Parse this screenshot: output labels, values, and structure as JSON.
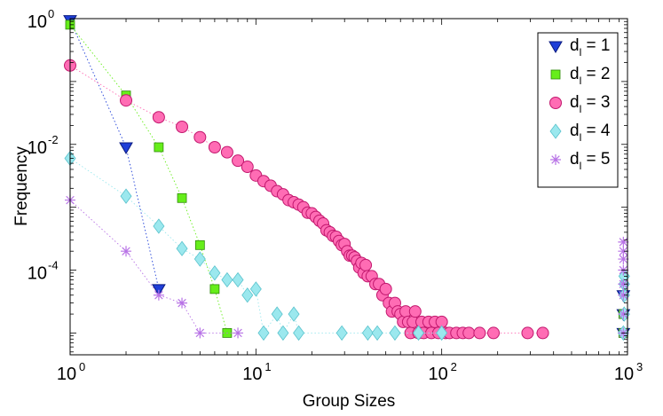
{
  "chart_data": {
    "type": "scatter",
    "title": "",
    "xlabel": "Group Sizes",
    "ylabel": "Frequency",
    "xscale": "log",
    "yscale": "log",
    "xlim": [
      1,
      1000
    ],
    "ylim": [
      4.5e-06,
      1
    ],
    "legend_position": "top-right",
    "x_ticks": [
      {
        "value": 1,
        "base": "10",
        "exp": "0"
      },
      {
        "value": 10,
        "base": "10",
        "exp": "1"
      },
      {
        "value": 100,
        "base": "10",
        "exp": "2"
      },
      {
        "value": 1000,
        "base": "10",
        "exp": "3"
      }
    ],
    "y_ticks": [
      {
        "value": 1,
        "base": "10",
        "exp": "0"
      },
      {
        "value": 0.01,
        "base": "10",
        "exp": "-2"
      },
      {
        "value": 0.0001,
        "base": "10",
        "exp": "-4"
      }
    ],
    "series": [
      {
        "name": "d_l = 1",
        "label_main": "d",
        "label_sub": "l",
        "label_rest": " = 1",
        "marker": "triangle-down",
        "color": "#1f3fd8",
        "stroke": "#0a1a80",
        "points": [
          [
            1,
            0.95
          ],
          [
            2,
            0.009
          ],
          [
            3,
            5e-05
          ],
          [
            950,
            1e-05
          ],
          [
            950,
            2e-05
          ],
          [
            950,
            4e-05
          ]
        ]
      },
      {
        "name": "d_l = 2",
        "label_main": "d",
        "label_sub": "l",
        "label_rest": " = 2",
        "marker": "square",
        "color": "#66ee1a",
        "stroke": "#2f8a0a",
        "points": [
          [
            1,
            0.8
          ],
          [
            2,
            0.06
          ],
          [
            3,
            0.009
          ],
          [
            4,
            0.0014
          ],
          [
            5,
            0.00025
          ],
          [
            6,
            5e-05
          ],
          [
            7,
            1e-05
          ],
          [
            950,
            1e-05
          ],
          [
            950,
            2e-05
          ]
        ]
      },
      {
        "name": "d_l = 3",
        "label_main": "d",
        "label_sub": "l",
        "label_rest": " = 3",
        "marker": "circle",
        "color": "#ff6cb4",
        "stroke": "#c2186e",
        "points": [
          [
            1,
            0.18
          ],
          [
            2,
            0.05
          ],
          [
            3,
            0.027
          ],
          [
            4,
            0.019
          ],
          [
            5,
            0.013
          ],
          [
            6,
            0.009
          ],
          [
            7,
            0.0075
          ],
          [
            8,
            0.0055
          ],
          [
            9,
            0.0044
          ],
          [
            10,
            0.0032
          ],
          [
            11,
            0.0026
          ],
          [
            12,
            0.0022
          ],
          [
            13,
            0.0018
          ],
          [
            14,
            0.0016
          ],
          [
            15,
            0.0013
          ],
          [
            16,
            0.0012
          ],
          [
            17,
            0.0011
          ],
          [
            18,
            0.001
          ],
          [
            19,
            0.00082
          ],
          [
            20,
            0.0008
          ],
          [
            21,
            0.0007
          ],
          [
            22,
            0.00061
          ],
          [
            23,
            0.00055
          ],
          [
            24,
            0.00043
          ],
          [
            25,
            0.0004
          ],
          [
            26,
            0.00035
          ],
          [
            27,
            0.00034
          ],
          [
            28,
            0.00029
          ],
          [
            29,
            0.00025
          ],
          [
            30,
            0.00026
          ],
          [
            31,
            0.0002
          ],
          [
            32,
            0.00017
          ],
          [
            33,
            0.00017
          ],
          [
            34,
            0.00016
          ],
          [
            35,
            0.00014
          ],
          [
            36,
            0.00011
          ],
          [
            37,
            0.00013
          ],
          [
            38,
            9e-05
          ],
          [
            39,
            0.00012
          ],
          [
            40,
            8e-05
          ],
          [
            42,
            8e-05
          ],
          [
            44,
            6e-05
          ],
          [
            46,
            6e-05
          ],
          [
            48,
            4e-05
          ],
          [
            50,
            5e-05
          ],
          [
            52,
            3e-05
          ],
          [
            54,
            2.2e-05
          ],
          [
            56,
            3e-05
          ],
          [
            58,
            2.2e-05
          ],
          [
            60,
            2e-05
          ],
          [
            62,
            1.5e-05
          ],
          [
            64,
            2.2e-05
          ],
          [
            66,
            1.5e-05
          ],
          [
            68,
            1e-05
          ],
          [
            70,
            1.5e-05
          ],
          [
            72,
            2.2e-05
          ],
          [
            75,
            1e-05
          ],
          [
            78,
            1.5e-05
          ],
          [
            80,
            1e-05
          ],
          [
            85,
            1.5e-05
          ],
          [
            88,
            1e-05
          ],
          [
            92,
            1.5e-05
          ],
          [
            96,
            1e-05
          ],
          [
            100,
            1.5e-05
          ],
          [
            105,
            1e-05
          ],
          [
            110,
            1e-05
          ],
          [
            120,
            1e-05
          ],
          [
            130,
            1e-05
          ],
          [
            140,
            1e-05
          ],
          [
            160,
            1e-05
          ],
          [
            190,
            1e-05
          ],
          [
            290,
            1e-05
          ],
          [
            350,
            1e-05
          ]
        ]
      },
      {
        "name": "d_l = 4",
        "label_main": "d",
        "label_sub": "l",
        "label_rest": " = 4",
        "marker": "diamond",
        "color": "#9be8ee",
        "stroke": "#59c2cc",
        "points": [
          [
            1,
            0.006
          ],
          [
            2,
            0.0015
          ],
          [
            3,
            0.0005
          ],
          [
            4,
            0.00022
          ],
          [
            5,
            0.00015
          ],
          [
            6,
            9e-05
          ],
          [
            7,
            7e-05
          ],
          [
            8,
            7e-05
          ],
          [
            9,
            4e-05
          ],
          [
            10,
            5e-05
          ],
          [
            11,
            1e-05
          ],
          [
            13,
            2e-05
          ],
          [
            14,
            1e-05
          ],
          [
            16,
            2e-05
          ],
          [
            17,
            1e-05
          ],
          [
            29,
            1e-05
          ],
          [
            40,
            1e-05
          ],
          [
            45,
            1e-05
          ],
          [
            56,
            1e-05
          ],
          [
            75,
            1e-05
          ],
          [
            100,
            1e-05
          ],
          [
            950,
            1e-05
          ],
          [
            960,
            2e-05
          ],
          [
            960,
            4e-05
          ],
          [
            960,
            6e-05
          ],
          [
            960,
            8e-05
          ]
        ]
      },
      {
        "name": "d_l = 5",
        "label_main": "d",
        "label_sub": "l",
        "label_rest": " = 5",
        "marker": "star",
        "color": "#b873e6",
        "stroke": "#9d4fdb",
        "points": [
          [
            1,
            0.0013
          ],
          [
            2,
            0.0002
          ],
          [
            3,
            4e-05
          ],
          [
            4,
            3e-05
          ],
          [
            5,
            1e-05
          ],
          [
            8,
            1e-05
          ],
          [
            950,
            1e-05
          ],
          [
            950,
            2e-05
          ],
          [
            950,
            4e-05
          ],
          [
            950,
            6e-05
          ],
          [
            950,
            0.0001
          ],
          [
            950,
            0.00015
          ],
          [
            950,
            0.0002
          ],
          [
            950,
            0.00028
          ]
        ]
      }
    ],
    "colors": {
      "axis": "#000000",
      "background": "#ffffff"
    }
  }
}
